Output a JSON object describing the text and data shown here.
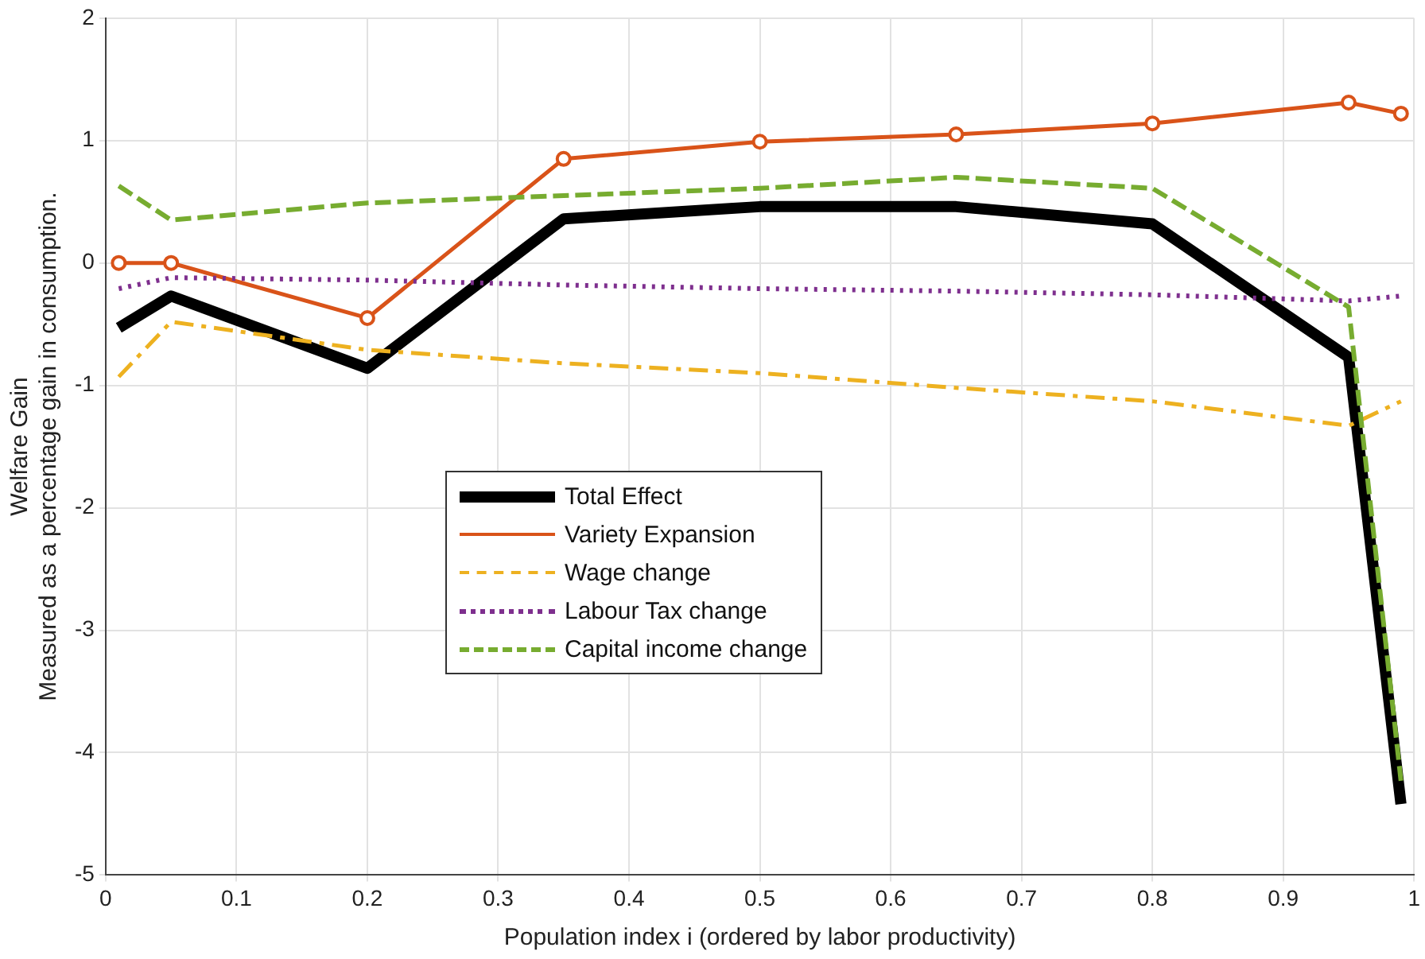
{
  "chart_data": {
    "type": "line",
    "xlabel": "Population index i (ordered by labor productivity)",
    "ylabel": "Welfare Gain\nMeasured as a percentage gain in consumption.",
    "x": [
      0.01,
      0.05,
      0.2,
      0.35,
      0.5,
      0.65,
      0.8,
      0.95,
      0.99
    ],
    "series": [
      {
        "name": "Total Effect",
        "color": "#000000",
        "values": [
          -0.53,
          -0.27,
          -0.86,
          0.36,
          0.46,
          0.46,
          0.32,
          -0.77,
          -4.42
        ],
        "line_style": "solid",
        "marker": "none"
      },
      {
        "name": "Variety Expansion",
        "color": "#d95319",
        "values": [
          0,
          0,
          -0.45,
          0.85,
          0.99,
          1.05,
          1.14,
          1.31,
          1.22
        ],
        "line_style": "solid",
        "marker": "circle"
      },
      {
        "name": "Wage change",
        "color": "#edb120",
        "values": [
          -0.93,
          -0.48,
          -0.71,
          -0.82,
          -0.9,
          -1.02,
          -1.13,
          -1.33,
          -1.13
        ],
        "line_style": "dashed",
        "marker": "none"
      },
      {
        "name": "Labour Tax change",
        "color": "#7e2f8e",
        "values": [
          -0.21,
          -0.12,
          -0.14,
          -0.18,
          -0.21,
          -0.23,
          -0.26,
          -0.31,
          -0.27
        ],
        "line_style": "dotted",
        "marker": "none"
      },
      {
        "name": "Capital income change",
        "color": "#77ac30",
        "values": [
          0.63,
          0.35,
          0.49,
          0.55,
          0.61,
          0.7,
          0.61,
          -0.36,
          -4.23
        ],
        "line_style": "dashed",
        "marker": "none"
      }
    ],
    "xlim": [
      0,
      1
    ],
    "xticks": [
      0,
      0.1,
      0.2,
      0.3,
      0.4,
      0.5,
      0.6,
      0.7,
      0.8,
      0.9,
      1
    ],
    "ylim": [
      -5,
      2
    ],
    "yticks": [
      -5,
      -4,
      -3,
      -2,
      -1,
      0,
      1,
      2
    ],
    "grid": true,
    "legend": "center left"
  }
}
